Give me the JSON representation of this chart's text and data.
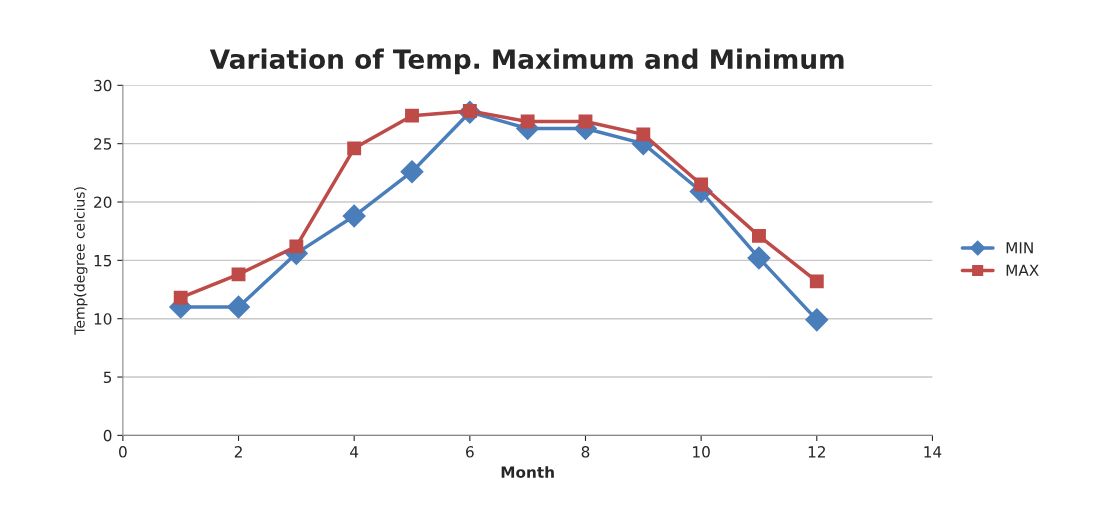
{
  "chart_data": {
    "type": "line",
    "title": "Variation of Temp. Maximum and Minimum",
    "xlabel": "Month",
    "ylabel": "Temp(degree celcius)",
    "x": [
      1,
      2,
      3,
      4,
      5,
      6,
      7,
      8,
      9,
      10,
      11,
      12
    ],
    "series": [
      {
        "name": "MIN",
        "color": "#4a7ebb",
        "marker": "diamond",
        "values": [
          11.0,
          11.0,
          15.6,
          18.8,
          22.6,
          27.7,
          26.3,
          26.3,
          25.0,
          20.9,
          15.2,
          9.9
        ]
      },
      {
        "name": "MAX",
        "color": "#be4b48",
        "marker": "square",
        "values": [
          11.8,
          13.8,
          16.2,
          24.6,
          27.4,
          27.8,
          26.9,
          26.9,
          25.8,
          21.5,
          17.1,
          13.2
        ]
      }
    ],
    "xlim": [
      0,
      14
    ],
    "xticks": [
      0,
      2,
      4,
      6,
      8,
      10,
      12,
      14
    ],
    "ylim": [
      0,
      30
    ],
    "yticks": [
      0,
      5,
      10,
      15,
      20,
      25,
      30
    ],
    "grid": "y",
    "legend": "right",
    "line_style": "solid"
  }
}
